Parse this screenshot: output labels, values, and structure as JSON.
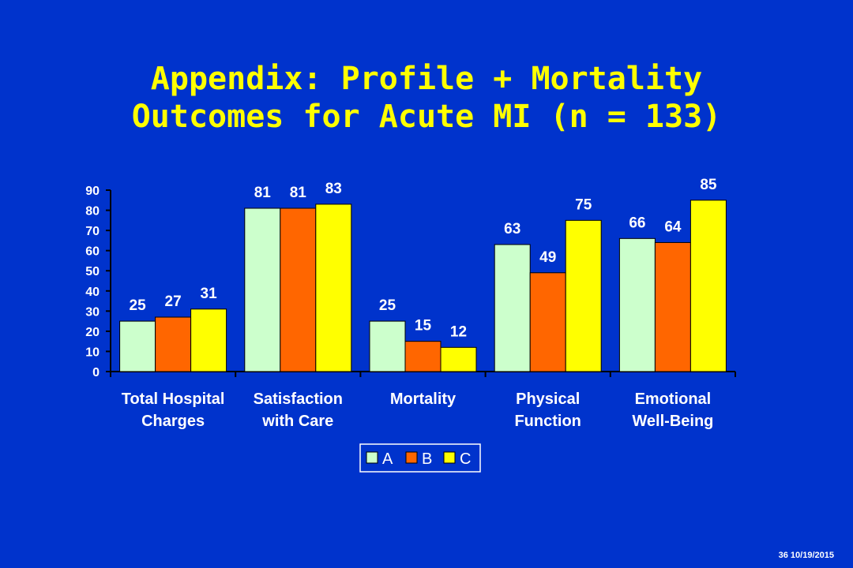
{
  "slide": {
    "title_line1": "Appendix: Profile + Mortality",
    "title_line2": "Outcomes for Acute MI (n = 133)",
    "footer": "36 10/19/2015"
  },
  "chart_data": {
    "type": "bar",
    "categories": [
      [
        "Total Hospital",
        "Charges"
      ],
      [
        "Satisfaction",
        "with Care"
      ],
      [
        "Mortality"
      ],
      [
        "Physical",
        "Function"
      ],
      [
        "Emotional",
        "Well-Being"
      ]
    ],
    "series": [
      {
        "name": "A",
        "color": "#ccffcc",
        "values": [
          25,
          81,
          25,
          63,
          66
        ]
      },
      {
        "name": "B",
        "color": "#ff6600",
        "values": [
          27,
          81,
          15,
          49,
          64
        ]
      },
      {
        "name": "C",
        "color": "#ffff00",
        "values": [
          31,
          83,
          12,
          75,
          85
        ]
      }
    ],
    "ylim": [
      0,
      90
    ],
    "yticks": [
      0,
      10,
      20,
      30,
      40,
      50,
      60,
      70,
      80,
      90
    ],
    "grid": false,
    "legend_position": "bottom"
  }
}
